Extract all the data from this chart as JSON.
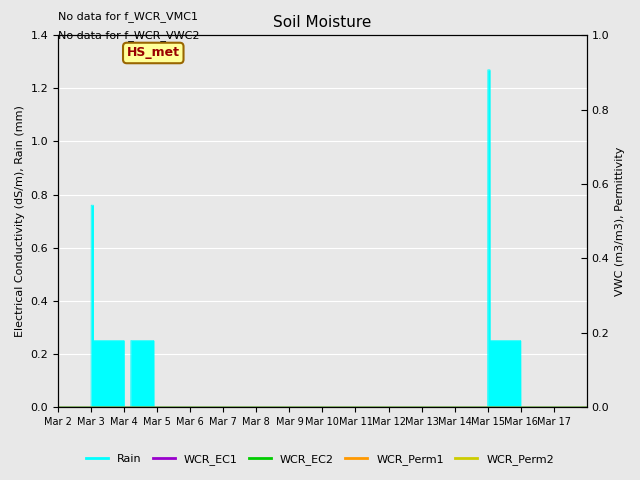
{
  "title": "Soil Moisture",
  "ylabel_left": "Electrical Conductivity (dS/m), Rain (mm)",
  "ylabel_right": "VWC (m3/m3), Permittivity",
  "xtick_labels": [
    "Mar 2",
    "Mar 3",
    "Mar 4",
    "Mar 5",
    "Mar 6",
    "Mar 7",
    "Mar 8",
    "Mar 9",
    "Mar 10",
    "Mar 11",
    "Mar 12",
    "Mar 13",
    "Mar 14",
    "Mar 15",
    "Mar 16",
    "Mar 17"
  ],
  "ylim_left": [
    0.0,
    1.4
  ],
  "ylim_right": [
    0.0,
    1.0
  ],
  "yticks_left": [
    0.0,
    0.2,
    0.4,
    0.6,
    0.8,
    1.0,
    1.2,
    1.4
  ],
  "yticks_right": [
    0.0,
    0.2,
    0.4,
    0.6,
    0.8,
    1.0
  ],
  "background_color": "#e8e8e8",
  "plot_bg_color": "#e8e8e8",
  "rain_color": "#00ffff",
  "wcr_ec1_color": "#9900cc",
  "wcr_ec2_color": "#00cc00",
  "wcr_perm1_color": "#ff9900",
  "wcr_perm2_color": "#cccc00",
  "annotation_text1": "No data for f_WCR_VMC1",
  "annotation_text2": "No data for f_WCR_VWC2",
  "box_label": "HS_met",
  "box_facecolor": "#ffff99",
  "box_edgecolor": "#996600",
  "box_textcolor": "#990000",
  "legend_entries": [
    {
      "label": "Rain",
      "color": "#00ffff"
    },
    {
      "label": "WCR_EC1",
      "color": "#9900cc"
    },
    {
      "label": "WCR_EC2",
      "color": "#00cc00"
    },
    {
      "label": "WCR_Perm1",
      "color": "#ff9900"
    },
    {
      "label": "WCR_Perm2",
      "color": "#cccc00"
    }
  ]
}
